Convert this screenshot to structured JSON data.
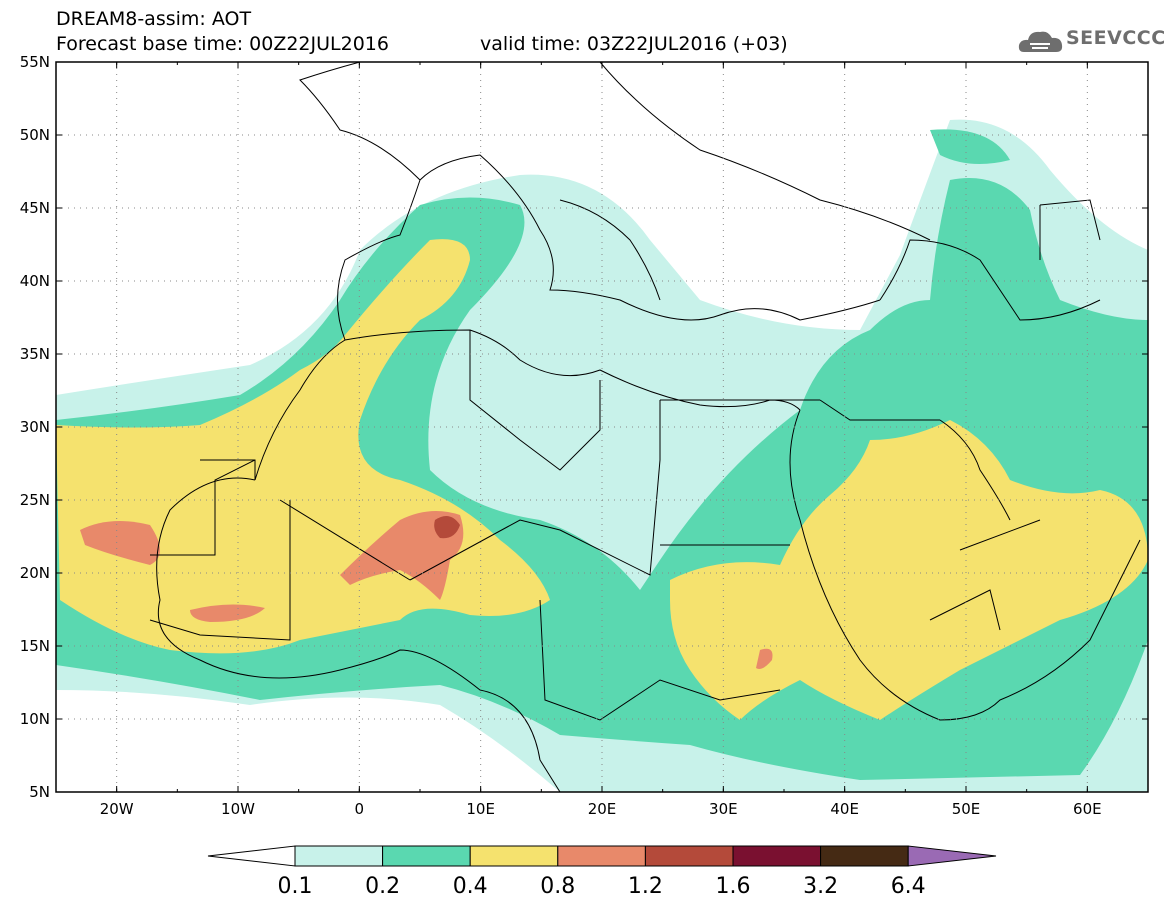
{
  "header": {
    "line1": "DREAM8-assim: AOT",
    "line2": "Forecast base time: 00Z22JUL2016",
    "line3": "valid time: 03Z22JUL2016 (+03)"
  },
  "logo": {
    "text": "SEEVCCC",
    "icon": "cloud-icon"
  },
  "map": {
    "lat_labels": [
      "55N",
      "50N",
      "45N",
      "40N",
      "35N",
      "30N",
      "25N",
      "20N",
      "15N",
      "10N",
      "5N"
    ],
    "lon_labels": [
      "20W",
      "10W",
      "0",
      "10E",
      "20E",
      "30E",
      "40E",
      "50E",
      "60E"
    ],
    "lon_range": [
      -25,
      65
    ],
    "lat_range": [
      5,
      55
    ]
  },
  "colorbar": {
    "labels": [
      "0.1",
      "0.2",
      "0.4",
      "0.8",
      "1.2",
      "1.6",
      "3.2",
      "6.4"
    ],
    "colors": [
      "#ffffff",
      "#c8f2ea",
      "#5ad8b0",
      "#f5e26e",
      "#e8896a",
      "#b44a3a",
      "#7a1030",
      "#452a14",
      "#9a6ab4"
    ]
  }
}
